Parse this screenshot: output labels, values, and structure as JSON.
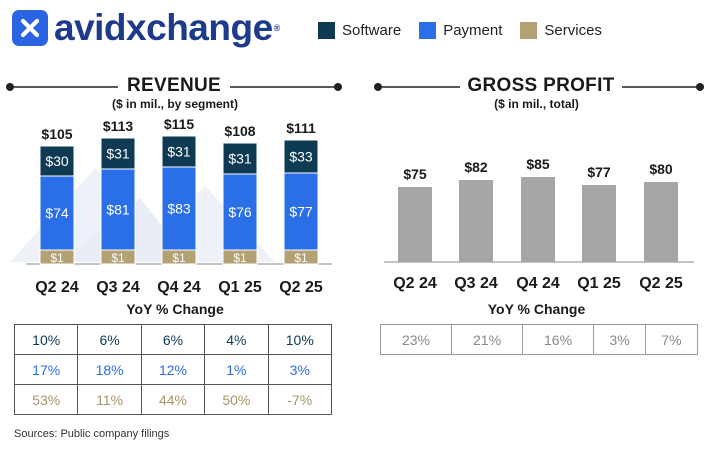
{
  "brand": {
    "name": "avidxchange",
    "reg": "®"
  },
  "legend": [
    {
      "label": "Software",
      "color": "#0e3a54"
    },
    {
      "label": "Payment",
      "color": "#2a6ee8"
    },
    {
      "label": "Services",
      "color": "#b3a174"
    }
  ],
  "revenue": {
    "title": "REVENUE",
    "subtitle": "($ in mil., by segment)",
    "yoy_title": "YoY % Change"
  },
  "gross_profit": {
    "title": "GROSS PROFIT",
    "subtitle": "($ in mil., total)",
    "yoy_title": "YoY % Change"
  },
  "chart_data": [
    {
      "type": "bar",
      "stacked": true,
      "title": "REVENUE",
      "subtitle": "($ in mil., by segment)",
      "categories": [
        "Q2 24",
        "Q3 24",
        "Q4 24",
        "Q1 25",
        "Q2 25"
      ],
      "series": [
        {
          "name": "Services",
          "values": [
            1,
            1,
            1,
            1,
            1
          ],
          "color": "#b3a174"
        },
        {
          "name": "Payment",
          "values": [
            74,
            81,
            83,
            76,
            77
          ],
          "color": "#2a6ee8"
        },
        {
          "name": "Software",
          "values": [
            30,
            31,
            31,
            31,
            33
          ],
          "color": "#0e3a54"
        }
      ],
      "totals": [
        105,
        113,
        115,
        108,
        111
      ],
      "segment_labels": {
        "Services": [
          "$1",
          "$1",
          "$1",
          "$1",
          "$1"
        ],
        "Payment": [
          "$74",
          "$81",
          "$83",
          "$76",
          "$77"
        ],
        "Software": [
          "$30",
          "$31",
          "$31",
          "$31",
          "$33"
        ]
      },
      "total_labels": [
        "$105",
        "$113",
        "$115",
        "$108",
        "$111"
      ],
      "ylim": [
        0,
        120
      ],
      "grid": false,
      "legend": "top-right"
    },
    {
      "type": "bar",
      "title": "GROSS PROFIT",
      "subtitle": "($ in mil., total)",
      "categories": [
        "Q2 24",
        "Q3 24",
        "Q4 24",
        "Q1 25",
        "Q2 25"
      ],
      "values": [
        75,
        82,
        85,
        77,
        80
      ],
      "labels": [
        "$75",
        "$82",
        "$85",
        "$77",
        "$80"
      ],
      "color": "#a6a6a6",
      "ylim": [
        0,
        120
      ],
      "grid": false
    }
  ],
  "yoy": {
    "revenue": [
      {
        "series": "Software",
        "color": "#0e3a54",
        "values": [
          "10%",
          "6%",
          "6%",
          "4%",
          "10%"
        ]
      },
      {
        "series": "Payment",
        "color": "#2a6ee8",
        "values": [
          "17%",
          "18%",
          "12%",
          "1%",
          "3%"
        ]
      },
      {
        "series": "Services",
        "color": "#a89567",
        "values": [
          "53%",
          "11%",
          "44%",
          "50%",
          "-7%"
        ]
      }
    ],
    "gross_profit": [
      "23%",
      "21%",
      "16%",
      "3%",
      "7%"
    ]
  },
  "sources": "Sources: Public company filings"
}
